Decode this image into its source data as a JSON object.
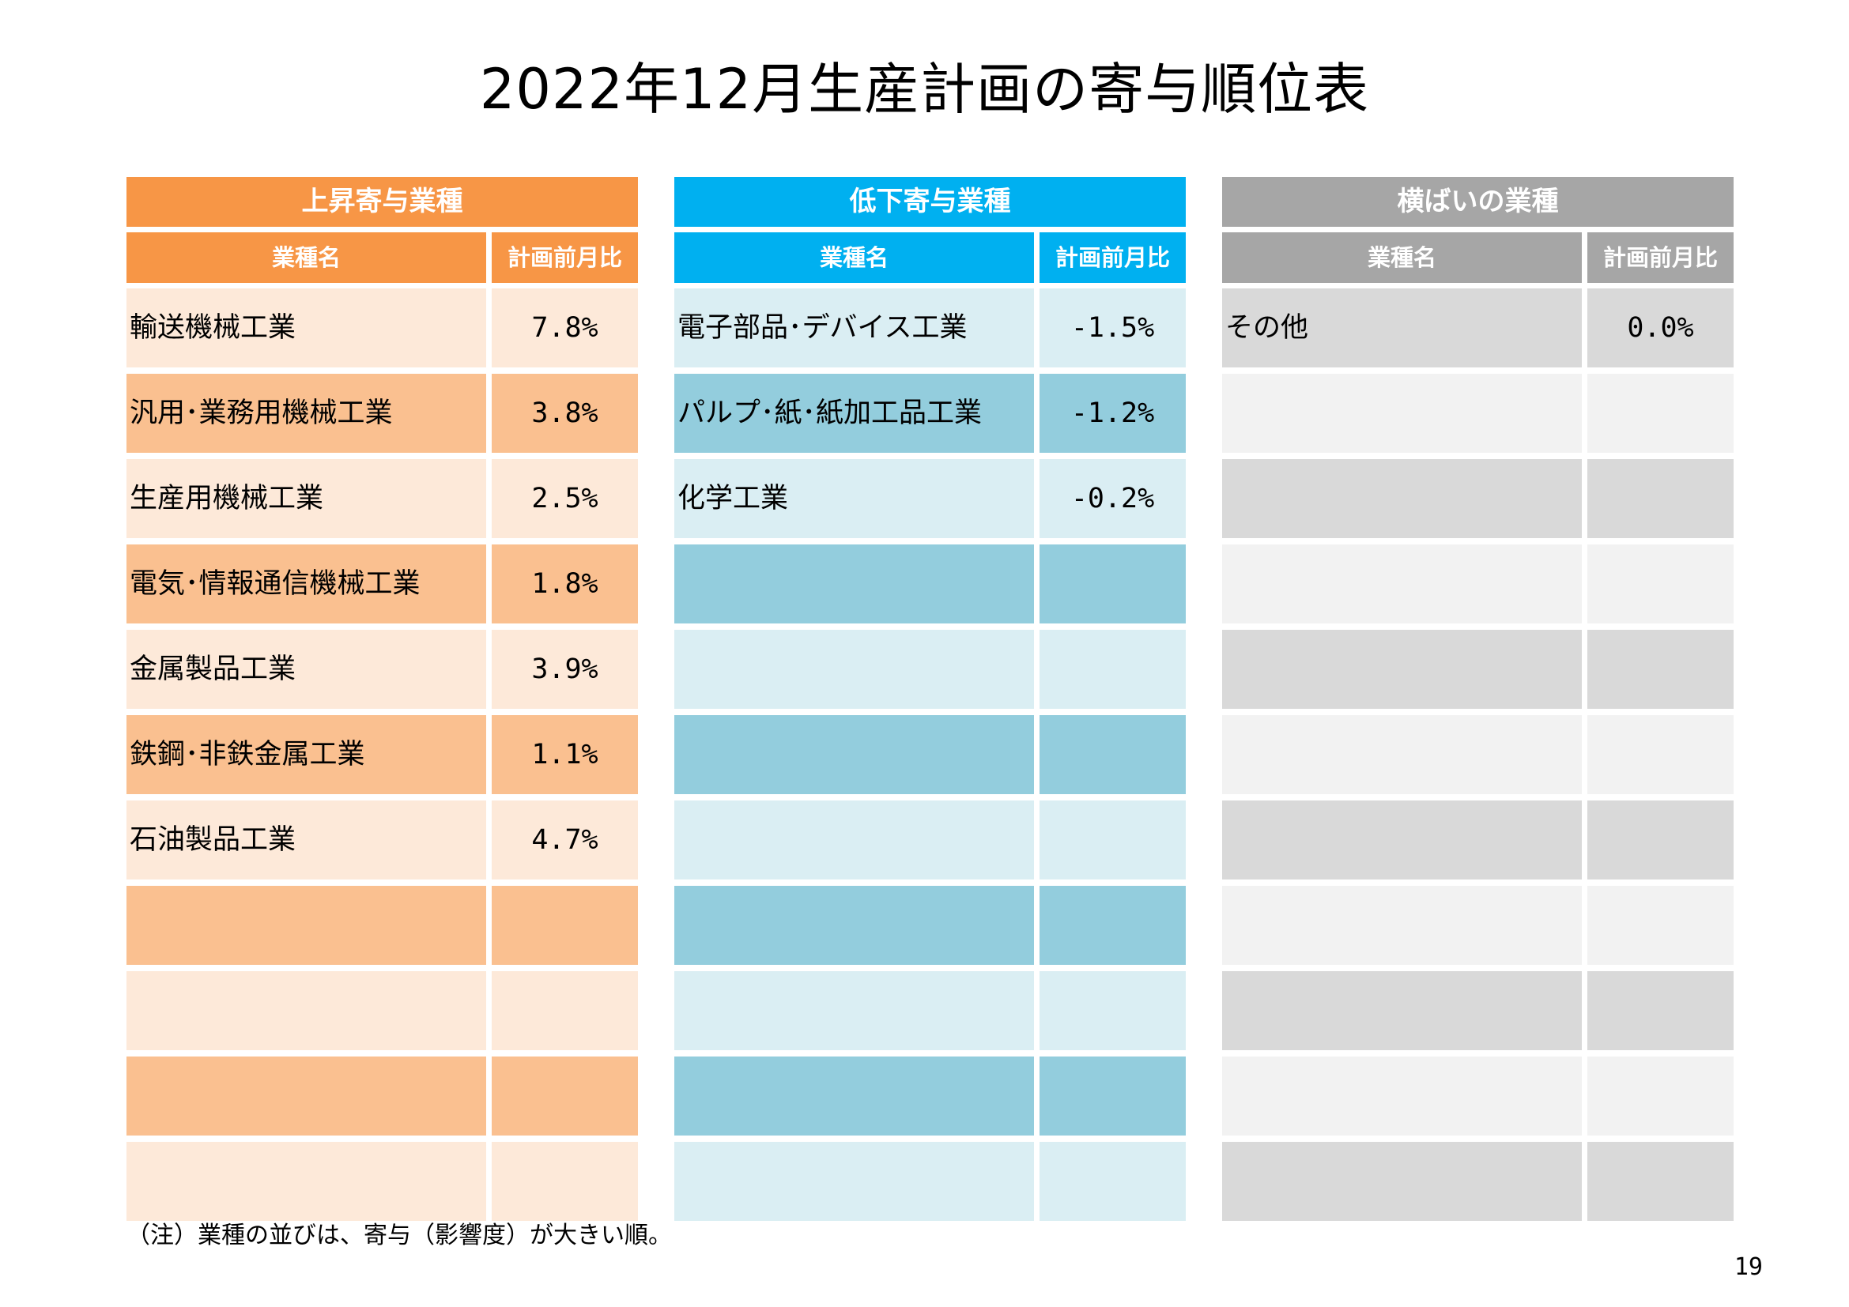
{
  "title": "2022年12月生産計画の寄与順位表",
  "column_headers": {
    "name": "業種名",
    "value": "計画前月比"
  },
  "groups": {
    "up": {
      "header": "上昇寄与業種",
      "rows": [
        {
          "name": "輸送機械工業",
          "value": "7.8%"
        },
        {
          "name": "汎用･業務用機械工業",
          "value": "3.8%"
        },
        {
          "name": "生産用機械工業",
          "value": "2.5%"
        },
        {
          "name": "電気･情報通信機械工業",
          "value": "1.8%"
        },
        {
          "name": "金属製品工業",
          "value": "3.9%"
        },
        {
          "name": "鉄鋼･非鉄金属工業",
          "value": "1.1%"
        },
        {
          "name": "石油製品工業",
          "value": "4.7%"
        },
        {
          "name": "",
          "value": ""
        },
        {
          "name": "",
          "value": ""
        },
        {
          "name": "",
          "value": ""
        },
        {
          "name": "",
          "value": ""
        }
      ]
    },
    "down": {
      "header": "低下寄与業種",
      "rows": [
        {
          "name": "電子部品･デバイス工業",
          "value": "-1.5%"
        },
        {
          "name": "パルプ･紙･紙加工品工業",
          "value": "-1.2%"
        },
        {
          "name": "化学工業",
          "value": "-0.2%"
        },
        {
          "name": "",
          "value": ""
        },
        {
          "name": "",
          "value": ""
        },
        {
          "name": "",
          "value": ""
        },
        {
          "name": "",
          "value": ""
        },
        {
          "name": "",
          "value": ""
        },
        {
          "name": "",
          "value": ""
        },
        {
          "name": "",
          "value": ""
        },
        {
          "name": "",
          "value": ""
        }
      ]
    },
    "flat": {
      "header": "横ばいの業種",
      "rows": [
        {
          "name": "その他",
          "value": "0.0%"
        },
        {
          "name": "",
          "value": ""
        },
        {
          "name": "",
          "value": ""
        },
        {
          "name": "",
          "value": ""
        },
        {
          "name": "",
          "value": ""
        },
        {
          "name": "",
          "value": ""
        },
        {
          "name": "",
          "value": ""
        },
        {
          "name": "",
          "value": ""
        },
        {
          "name": "",
          "value": ""
        },
        {
          "name": "",
          "value": ""
        },
        {
          "name": "",
          "value": ""
        }
      ]
    }
  },
  "note": "（注）業種の並びは、寄与（影響度）が大きい順。",
  "page_number": "19"
}
